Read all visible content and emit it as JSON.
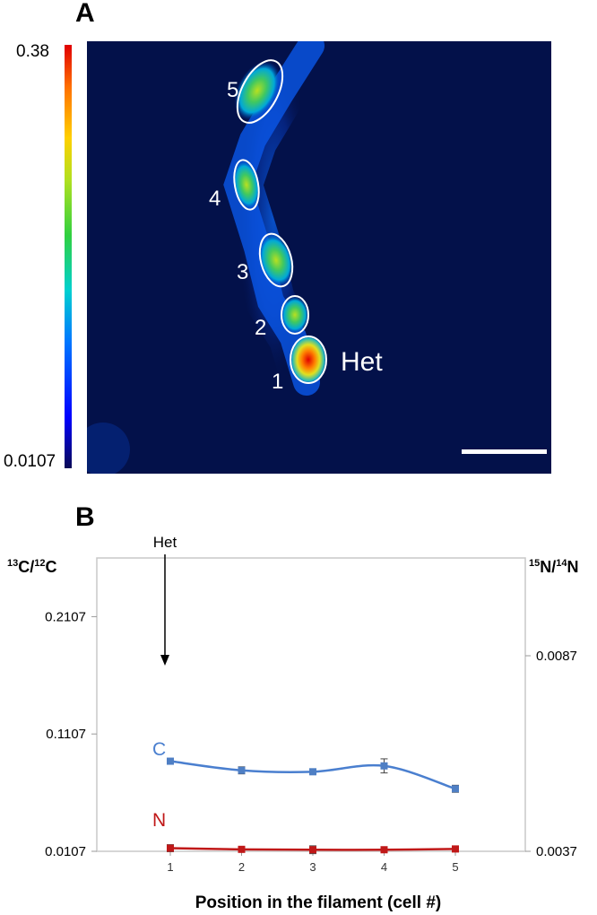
{
  "panel_a": {
    "letter": "A",
    "colorbar": {
      "max_label": "0.38",
      "min_label": "0.0107"
    },
    "cell_labels": [
      "1",
      "2",
      "3",
      "4",
      "5"
    ],
    "het_label": "Het"
  },
  "panel_b": {
    "letter": "B",
    "het_annotation": "Het",
    "left_axis_title": {
      "sup1": "13",
      "mid": "C/",
      "sup2": "12",
      "end": "C"
    },
    "right_axis_title": {
      "sup1": "15",
      "mid": "N/",
      "sup2": "14",
      "end": "N"
    },
    "series_labels": {
      "C": "C",
      "N": "N"
    },
    "colors": {
      "C": "#4a7fcf",
      "N": "#c01818",
      "C_marker": "#4f7fc4"
    }
  },
  "chart_data": {
    "type": "line",
    "x": [
      1,
      2,
      3,
      4,
      5
    ],
    "xticks": [
      "1",
      "2",
      "3",
      "4",
      "5"
    ],
    "xlabel": "Position in the filament (cell #)",
    "left_ylim": [
      0.0107,
      0.2607
    ],
    "left_yticks": [
      "0.0107",
      "0.1107",
      "0.2107"
    ],
    "right_ylim": [
      0.0037,
      0.0112
    ],
    "right_yticks": [
      "0.0037",
      "0.0087"
    ],
    "series": [
      {
        "name": "C",
        "axis": "left",
        "values": [
          0.0875,
          0.0797,
          0.0785,
          0.0835,
          0.064
        ],
        "errors": [
          0.0,
          0.003,
          0.002,
          0.006,
          0.003
        ]
      },
      {
        "name": "N",
        "axis": "right",
        "values": [
          0.00378,
          0.00375,
          0.00374,
          0.00374,
          0.00376
        ],
        "errors": [
          9e-05,
          3e-05,
          0.0001,
          6e-05,
          3e-05
        ]
      }
    ],
    "grid": false
  }
}
